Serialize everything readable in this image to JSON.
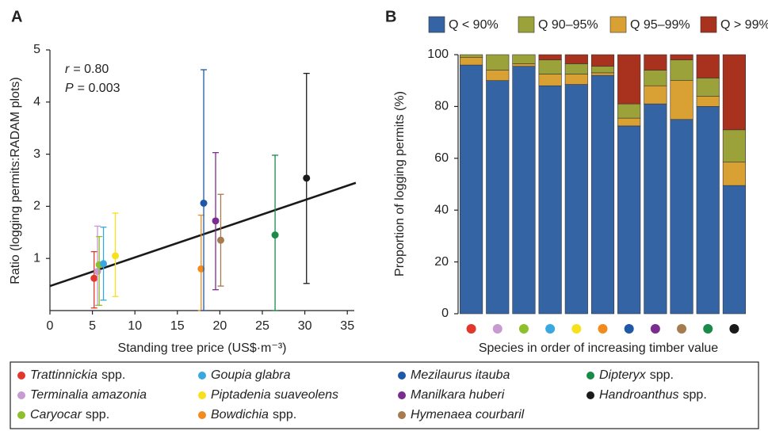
{
  "panels": [
    "A",
    "B"
  ],
  "legend": {
    "items": [
      {
        "label": "Trattinnickia",
        "suffix": "spp.",
        "color": "#e2372c"
      },
      {
        "label": "Terminalia amazonia",
        "suffix": null,
        "color": "#c79ad2"
      },
      {
        "label": "Caryocar",
        "suffix": "spp.",
        "color": "#8dc02b"
      },
      {
        "label": "Goupia glabra",
        "suffix": null,
        "color": "#3aa8e0"
      },
      {
        "label": "Piptadenia suaveolens",
        "suffix": null,
        "color": "#f6e11c"
      },
      {
        "label": "Bowdichia",
        "suffix": "spp.",
        "color": "#f28b1d"
      },
      {
        "label": "Mezilaurus itauba",
        "suffix": null,
        "color": "#1f58a6"
      },
      {
        "label": "Manilkara huberi",
        "suffix": null,
        "color": "#7a2d8e"
      },
      {
        "label": "Hymenaea courbaril",
        "suffix": null,
        "color": "#a67b50"
      },
      {
        "label": "Dipteryx",
        "suffix": "spp.",
        "color": "#198a48"
      },
      {
        "label": "Handroanthus",
        "suffix": "spp.",
        "color": "#1a1a1a"
      }
    ]
  },
  "chart_data": [
    {
      "type": "scatter",
      "x_label": "Standing tree price (US$·m⁻³)",
      "y_label": "Ratio (logging permits:RADAM plots)",
      "annotations": [
        {
          "symbol": "r",
          "text": "= 0.80"
        },
        {
          "symbol": "P",
          "text": "= 0.003"
        }
      ],
      "x": [
        5.2,
        5.6,
        5.8,
        6.3,
        7.7,
        17.8,
        18.1,
        19.5,
        20.1,
        26.5,
        30.2
      ],
      "values": [
        0.62,
        0.75,
        0.88,
        0.9,
        1.05,
        0.8,
        2.06,
        1.72,
        1.35,
        1.45,
        2.54
      ],
      "err_low": [
        0.05,
        0.1,
        0.1,
        0.2,
        0.27,
        0.0,
        0.0,
        0.4,
        0.47,
        0.0,
        0.52
      ],
      "err_high": [
        1.13,
        1.62,
        1.42,
        1.6,
        1.87,
        1.83,
        4.62,
        3.03,
        2.23,
        2.98,
        4.55
      ],
      "fit": {
        "x": [
          0,
          36
        ],
        "values": [
          0.47,
          2.45
        ],
        "color": "#1a1a1a"
      },
      "xlim": [
        0,
        36
      ],
      "xticks": [
        0,
        5,
        10,
        15,
        20,
        25,
        30,
        35
      ],
      "ylim": [
        0,
        5
      ],
      "yticks": [
        1,
        2,
        3,
        4,
        5
      ]
    },
    {
      "type": "stacked_bar",
      "x_label": "Species in order of increasing timber value",
      "y_label": "Proportion of logging permits (%)",
      "categories": [
        null,
        null,
        null,
        null,
        null,
        null,
        null,
        null,
        null,
        null,
        null
      ],
      "stack_order": [
        0,
        2,
        1,
        3
      ],
      "legend_position": "top",
      "series": [
        {
          "name": "Q < 90%",
          "color": "#3564a4",
          "values": [
            96,
            90,
            95.5,
            88,
            88.5,
            92,
            72.5,
            81,
            75,
            80,
            49.5
          ]
        },
        {
          "name": "Q 90–95%",
          "color": "#9ba23a",
          "values": [
            1,
            6,
            3.5,
            5.5,
            4,
            2.5,
            5.5,
            6,
            8,
            7,
            12.5
          ]
        },
        {
          "name": "Q 95–99%",
          "color": "#d9a033",
          "values": [
            3,
            4,
            1,
            4.5,
            4,
            1,
            3,
            7,
            15,
            4,
            9
          ]
        },
        {
          "name": "Q > 99%",
          "color": "#a9321e",
          "values": [
            0,
            0,
            0,
            2,
            3.5,
            4.5,
            19,
            6,
            2,
            9,
            29
          ]
        }
      ],
      "ylim": [
        0,
        100
      ],
      "yticks": [
        0,
        20,
        40,
        60,
        80,
        100
      ]
    }
  ]
}
